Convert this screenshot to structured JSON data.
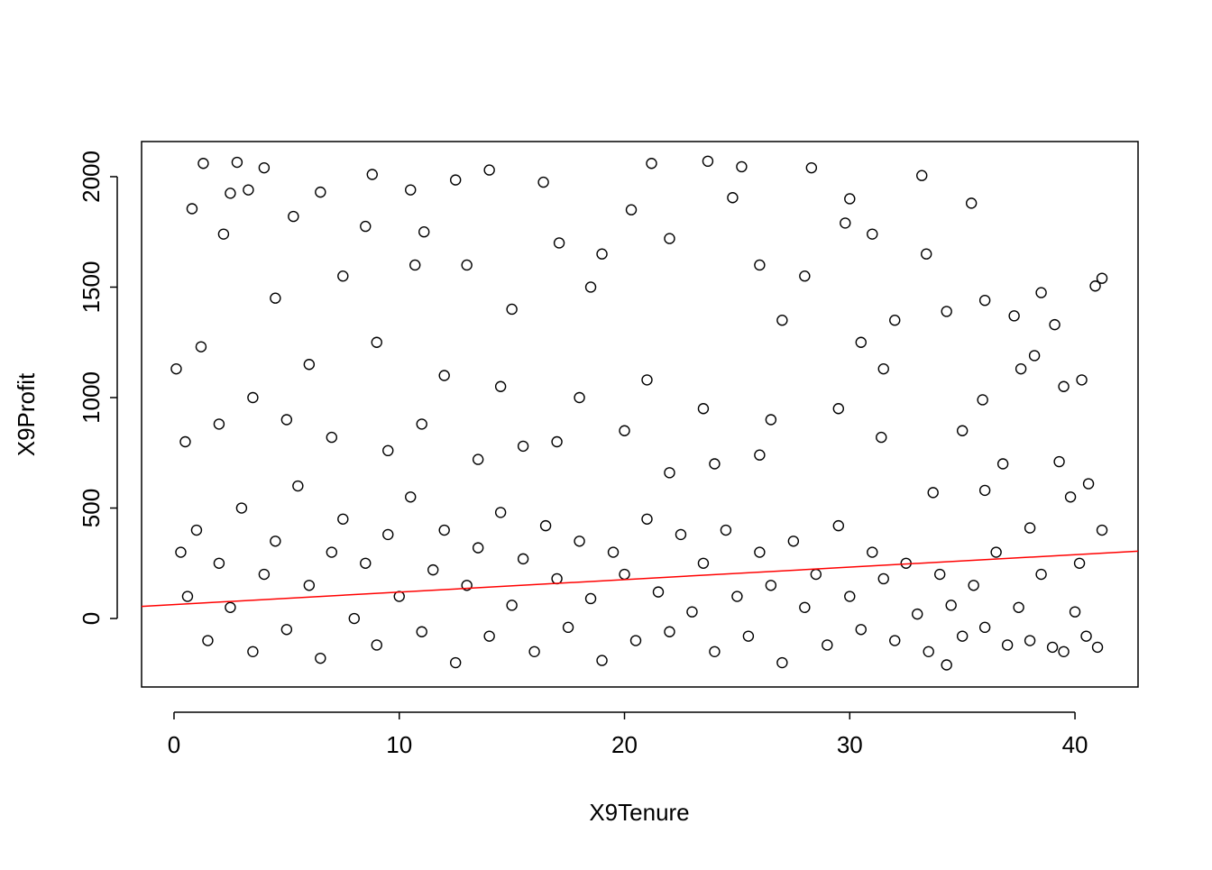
{
  "chart_data": {
    "type": "scatter",
    "x_label": "X9Tenure",
    "y_label": "X9Profit",
    "x": [
      1.3,
      2.8,
      4,
      6.5,
      8.8,
      10.5,
      12.5,
      14,
      16.4,
      21.2,
      23.7,
      25.2,
      28.3,
      33.2,
      35.4,
      30,
      2.5,
      3.3,
      0.8,
      5.3,
      11.1,
      20.3,
      24.8,
      29.8,
      31,
      41.2,
      40.9,
      38.5,
      33.4,
      36,
      17.1,
      19,
      22,
      26,
      27,
      2.2,
      8.5,
      13,
      15,
      7.5,
      4.5,
      1.2,
      30.5,
      34.3,
      37.3,
      39.1,
      32,
      28,
      18.5,
      10.7,
      0.1,
      3.5,
      6,
      9,
      12,
      14.5,
      18,
      21,
      23.5,
      26.5,
      29.5,
      31.5,
      35.9,
      37.6,
      39.5,
      40.3,
      38.2,
      36.8,
      39.3,
      40.6,
      33.7,
      35,
      31.4,
      26,
      24,
      22,
      20,
      17,
      15.5,
      13.5,
      11,
      9.5,
      7,
      5,
      2,
      0.5,
      0.3,
      0.6,
      1,
      1.5,
      2,
      2.5,
      3,
      3.5,
      4,
      4.5,
      5,
      5.5,
      6,
      6.5,
      7,
      7.5,
      8,
      8.5,
      9,
      9.5,
      10,
      10.5,
      11,
      11.5,
      12,
      12.5,
      13,
      13.5,
      14,
      14.5,
      15,
      15.5,
      16,
      16.5,
      17,
      17.5,
      18,
      18.5,
      19,
      19.5,
      20,
      20.5,
      21,
      21.5,
      22,
      22.5,
      23,
      23.5,
      24,
      24.5,
      25,
      25.5,
      26,
      26.5,
      27,
      27.5,
      28,
      28.5,
      29,
      29.5,
      30,
      30.5,
      31,
      31.5,
      32,
      32.5,
      33,
      33.5,
      34,
      34.3,
      34.5,
      35,
      35.5,
      36,
      36.5,
      37,
      37.5,
      38,
      38.5,
      39,
      39.5,
      40,
      40.5,
      41,
      40.2,
      41.2,
      39.8,
      38,
      36
    ],
    "values": [
      2060,
      2065,
      2040,
      1930,
      2010,
      1940,
      1985,
      2030,
      1975,
      2060,
      2070,
      2045,
      2040,
      2005,
      1880,
      1900,
      1925,
      1940,
      1855,
      1820,
      1750,
      1850,
      1905,
      1790,
      1740,
      1540,
      1505,
      1475,
      1650,
      1440,
      1700,
      1650,
      1720,
      1600,
      1350,
      1740,
      1775,
      1600,
      1400,
      1550,
      1450,
      1230,
      1250,
      1390,
      1370,
      1330,
      1350,
      1550,
      1500,
      1600,
      1130,
      1000,
      1150,
      1250,
      1100,
      1050,
      1000,
      1080,
      950,
      900,
      950,
      1130,
      990,
      1130,
      1050,
      1080,
      1190,
      700,
      710,
      610,
      570,
      850,
      820,
      740,
      700,
      660,
      850,
      800,
      780,
      720,
      880,
      760,
      820,
      900,
      880,
      800,
      300,
      100,
      400,
      -100,
      250,
      50,
      500,
      -150,
      200,
      350,
      -50,
      600,
      150,
      -180,
      300,
      450,
      0,
      250,
      -120,
      380,
      100,
      550,
      -60,
      220,
      400,
      -200,
      150,
      320,
      -80,
      480,
      60,
      270,
      -150,
      420,
      180,
      -40,
      350,
      90,
      -190,
      300,
      200,
      -100,
      450,
      120,
      -60,
      380,
      30,
      250,
      -150,
      400,
      100,
      -80,
      300,
      150,
      -200,
      350,
      50,
      200,
      -120,
      420,
      100,
      -50,
      300,
      180,
      -100,
      250,
      20,
      -150,
      200,
      -210,
      60,
      -80,
      150,
      -40,
      300,
      -120,
      50,
      -100,
      200,
      -130,
      -150,
      30,
      -80,
      -130,
      250,
      400,
      550,
      410,
      580
    ],
    "color": "#000000",
    "trend_line": {
      "intercept": 63,
      "slope": 5.65,
      "color": "#ff0000"
    },
    "xlim": [
      -1.44,
      42.8
    ],
    "ylim": [
      -310,
      2159
    ],
    "xticks": [
      0,
      10,
      20,
      30,
      40
    ],
    "yticks": [
      0,
      500,
      1000,
      1500,
      2000
    ]
  }
}
